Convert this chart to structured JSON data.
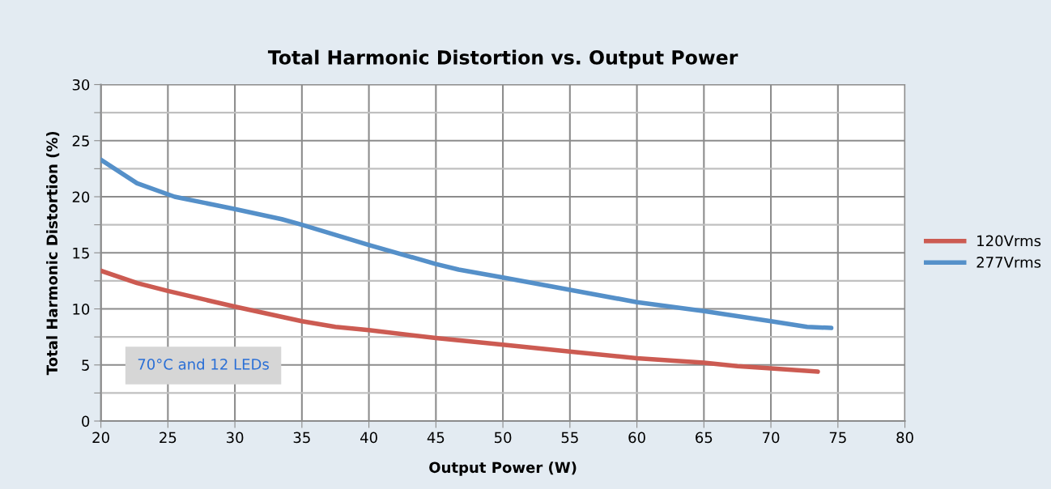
{
  "chart_data": {
    "type": "line",
    "title": "Total Harmonic Distortion vs. Output Power",
    "xlabel": "Output Power (W)",
    "ylabel": "Total Harmonic Distortion (%)",
    "series": [
      {
        "name": "120Vrms",
        "color": "#cc5b52",
        "x": [
          20,
          22.7,
          25,
          30,
          35,
          37.5,
          40,
          45,
          50,
          55,
          60,
          65,
          67.5,
          70,
          73.5
        ],
        "values": [
          13.4,
          12.3,
          11.6,
          10.2,
          8.9,
          8.4,
          8.1,
          7.4,
          6.8,
          6.2,
          5.6,
          5.2,
          4.9,
          4.7,
          4.4
        ]
      },
      {
        "name": "277Vrms",
        "color": "#5590c9",
        "x": [
          20,
          22.7,
          25.5,
          30,
          33.5,
          35,
          40,
          45,
          46.7,
          50,
          55,
          60,
          65,
          70,
          72.7,
          74.5
        ],
        "values": [
          23.3,
          21.2,
          20.0,
          18.9,
          18.0,
          17.5,
          15.7,
          14.0,
          13.5,
          12.8,
          11.7,
          10.6,
          9.8,
          8.9,
          8.4,
          8.3
        ]
      }
    ],
    "xlim": [
      20,
      80
    ],
    "xticks": [
      20,
      25,
      30,
      35,
      40,
      45,
      50,
      55,
      60,
      65,
      70,
      75,
      80
    ],
    "ylim": [
      0,
      30
    ],
    "yticks": [
      0,
      {
        "value": 2.5,
        "label": null
      },
      5,
      {
        "value": 7.5,
        "label": null
      },
      10,
      {
        "value": 12.5,
        "label": null
      },
      15,
      {
        "value": 17.5,
        "label": null
      },
      20,
      {
        "value": 22.5,
        "label": null
      },
      25,
      {
        "value": 27.5,
        "label": null
      },
      30
    ],
    "annotations": [
      "70°C and 12 LEDs"
    ],
    "grid": true,
    "legend": "right",
    "marker": "none",
    "line_style": "solid"
  }
}
